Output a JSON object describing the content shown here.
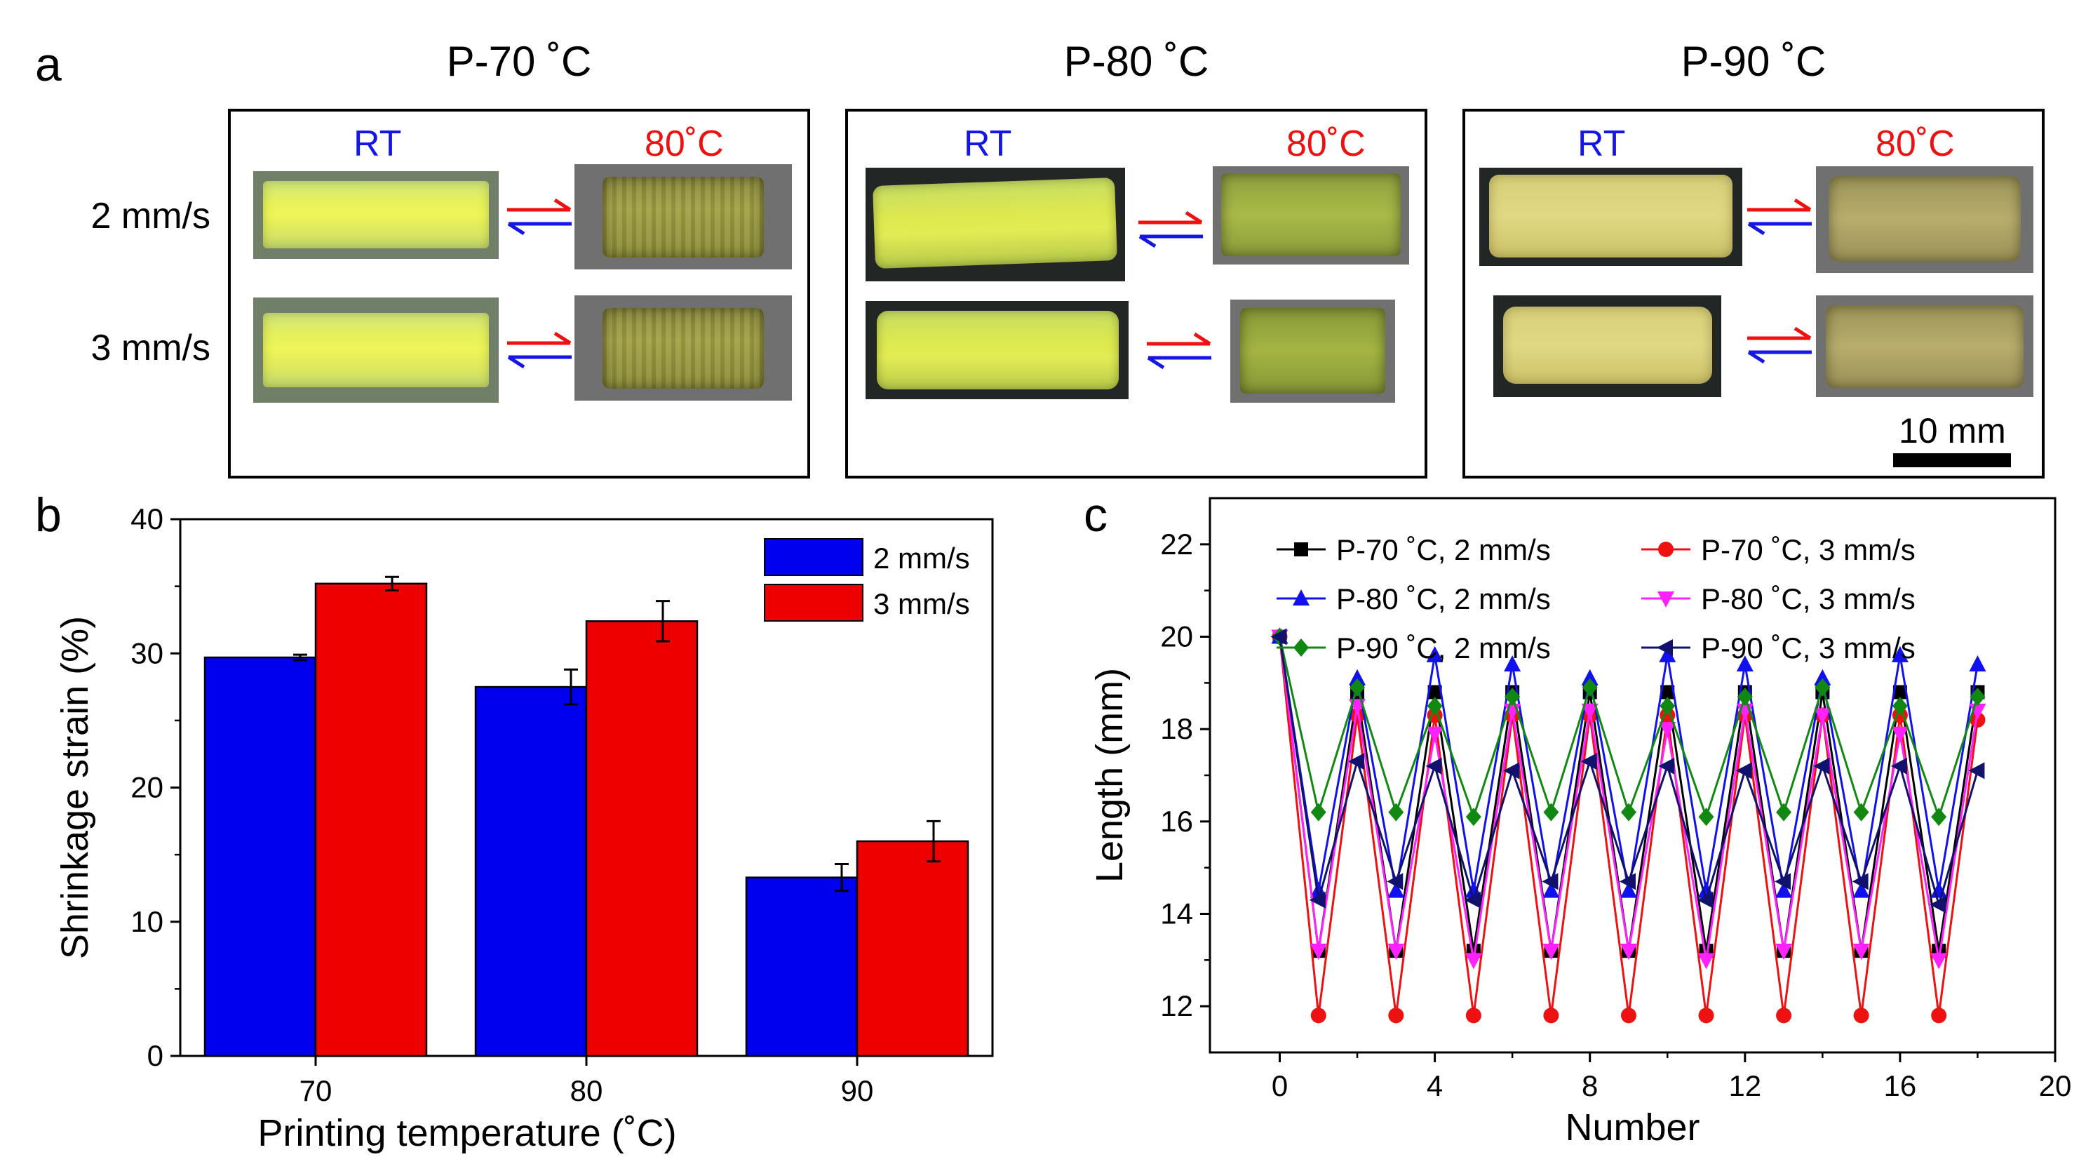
{
  "panel_a": {
    "label": "a",
    "titles": [
      "P-70 ˚C",
      "P-80 ˚C",
      "P-90 ˚C"
    ],
    "state_rt": "RT",
    "state_hot": "80˚C",
    "speeds": [
      "2 mm/s",
      "3 mm/s"
    ],
    "scale_bar": "10 mm",
    "colors": {
      "rt": "#1515e6",
      "hot": "#ee1111"
    }
  },
  "chart_data": [
    {
      "panel": "b",
      "type": "bar",
      "categories": [
        "70",
        "80",
        "90"
      ],
      "series": [
        {
          "name": "2 mm/s",
          "values": [
            29.7,
            27.5,
            13.3
          ],
          "errors": [
            0.2,
            1.3,
            1.0
          ],
          "color": "#0000ee"
        },
        {
          "name": "3 mm/s",
          "values": [
            35.2,
            32.4,
            16.0
          ],
          "errors": [
            0.5,
            1.5,
            1.5
          ],
          "color": "#ee0000"
        }
      ],
      "xlabel": "Printing temperature (˚C)",
      "ylabel": "Shrinkage strain (%)",
      "ylim": [
        0,
        40
      ],
      "yticks": [
        0,
        10,
        20,
        30,
        40
      ],
      "legend_position": "top-right"
    },
    {
      "panel": "c",
      "type": "line",
      "x": [
        0,
        1,
        2,
        3,
        4,
        5,
        6,
        7,
        8,
        9,
        10,
        11,
        12,
        13,
        14,
        15,
        16,
        17,
        18
      ],
      "series": [
        {
          "name": "P-70 ˚C, 2 mm/s",
          "color": "#000000",
          "marker": "square",
          "values": [
            20,
            13.2,
            18.8,
            13.2,
            18.8,
            13.2,
            18.8,
            13.2,
            18.8,
            13.2,
            18.8,
            13.2,
            18.8,
            13.2,
            18.8,
            13.2,
            18.8,
            13.2,
            18.8
          ]
        },
        {
          "name": "P-70 ˚C, 3 mm/s",
          "color": "#ee1111",
          "marker": "circle",
          "values": [
            20,
            11.8,
            18.3,
            11.8,
            18.3,
            11.8,
            18.3,
            11.8,
            18.3,
            11.8,
            18.3,
            11.8,
            18.3,
            11.8,
            18.3,
            11.8,
            18.3,
            11.8,
            18.2
          ]
        },
        {
          "name": "P-80 ˚C, 2 mm/s",
          "color": "#1111ee",
          "marker": "triangle-up",
          "values": [
            20,
            14.5,
            19.1,
            14.5,
            19.6,
            14.5,
            19.4,
            14.5,
            19.1,
            14.5,
            19.6,
            14.5,
            19.4,
            14.5,
            19.1,
            14.5,
            19.6,
            14.5,
            19.4
          ]
        },
        {
          "name": "P-80 ˚C, 3 mm/s",
          "color": "#ff22ff",
          "marker": "triangle-down",
          "values": [
            20,
            13.2,
            18.5,
            13.2,
            17.9,
            13.0,
            18.4,
            13.2,
            18.4,
            13.2,
            18.0,
            13.0,
            18.4,
            13.2,
            18.3,
            13.2,
            17.9,
            13.0,
            18.4
          ]
        },
        {
          "name": "P-90 ˚C, 2 mm/s",
          "color": "#118811",
          "marker": "diamond",
          "values": [
            20,
            16.2,
            18.9,
            16.2,
            18.5,
            16.1,
            18.7,
            16.2,
            18.9,
            16.2,
            18.5,
            16.1,
            18.7,
            16.2,
            18.9,
            16.2,
            18.5,
            16.1,
            18.7
          ]
        },
        {
          "name": "P-90 ˚C, 3 mm/s",
          "color": "#11116e",
          "marker": "triangle-left",
          "values": [
            20,
            14.3,
            17.3,
            14.7,
            17.2,
            14.3,
            17.1,
            14.7,
            17.3,
            14.7,
            17.2,
            14.3,
            17.1,
            14.7,
            17.2,
            14.7,
            17.2,
            14.2,
            17.1
          ]
        }
      ],
      "xlabel": "Number",
      "ylabel": "Length (mm)",
      "xlim": [
        -1.8,
        20
      ],
      "ylim": [
        11,
        23
      ],
      "xticks": [
        0,
        4,
        8,
        12,
        16,
        20
      ],
      "yticks": [
        12,
        14,
        16,
        18,
        20,
        22
      ],
      "legend_position": "top"
    }
  ]
}
